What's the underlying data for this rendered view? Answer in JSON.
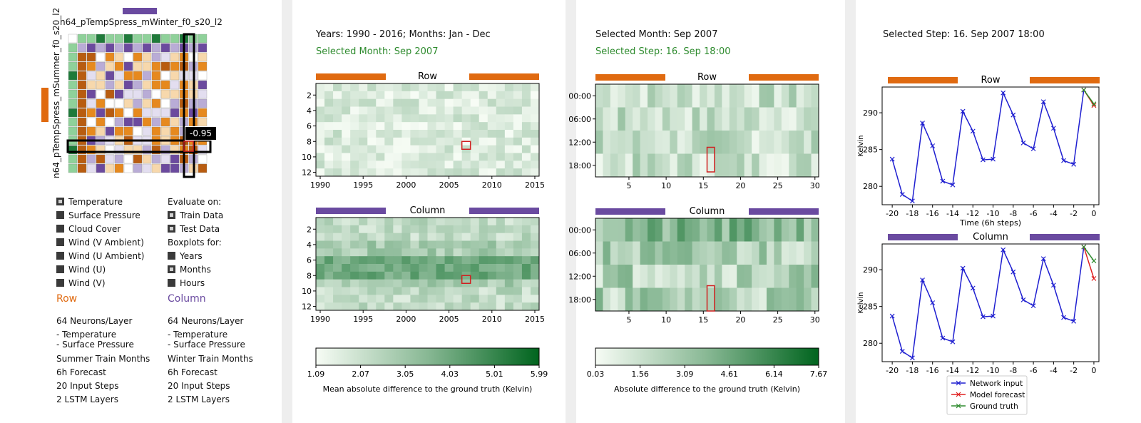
{
  "panel1": {
    "matrix_title": "n64_pTempSpress_mWinter_f0_s20_l2",
    "matrix_ylabel": "n64_pTempSpress_mSummer_f0_s20_l2",
    "tooltip_value": "-0.95",
    "features": [
      {
        "label": "Temperature",
        "checked": true
      },
      {
        "label": "Surface Pressure",
        "checked": false
      },
      {
        "label": "Cloud Cover",
        "checked": false
      },
      {
        "label": "Wind (V Ambient)",
        "checked": false
      },
      {
        "label": "Wind (U Ambient)",
        "checked": false
      },
      {
        "label": "Wind (U)",
        "checked": false
      },
      {
        "label": "Wind (V)",
        "checked": false
      }
    ],
    "evaluate_label": "Evaluate on:",
    "evaluate_options": [
      {
        "label": "Train Data",
        "checked": true
      },
      {
        "label": "Test Data",
        "checked": true
      }
    ],
    "boxplots_label": "Boxplots for:",
    "boxplot_options": [
      {
        "label": "Years",
        "checked": false
      },
      {
        "label": "Months",
        "checked": true
      },
      {
        "label": "Hours",
        "checked": false
      }
    ],
    "row_heading": "Row",
    "column_heading": "Column",
    "row_info": [
      "64 Neurons/Layer",
      "- Temperature",
      "- Surface Pressure",
      "Summer Train Months",
      "6h Forecast",
      "20 Input Steps",
      "2 LSTM Layers"
    ],
    "column_info": [
      "64 Neurons/Layer",
      "- Temperature",
      "- Surface Pressure",
      "Winter Train Months",
      "6h Forecast",
      "20 Input Steps",
      "2 LSTM Layers"
    ],
    "colors": {
      "row": "#e06a10",
      "column": "#6a4aa0"
    }
  },
  "panel2": {
    "heading": "Years: 1990 - 2016; Months: Jan - Dec",
    "subheading": "Selected Month: Sep 2007",
    "row_title": "Row",
    "column_title": "Column",
    "y_ticks": [
      "2",
      "4",
      "6",
      "8",
      "10",
      "12"
    ],
    "x_ticks": [
      "1990",
      "1995",
      "2000",
      "2005",
      "2010",
      "2015"
    ],
    "colorbar_ticks": [
      "1.09",
      "2.07",
      "3.05",
      "4.03",
      "5.01",
      "5.99"
    ],
    "colorbar_label": "Mean absolute difference to the ground truth (Kelvin)"
  },
  "panel3": {
    "heading": "Selected Month: Sep 2007",
    "subheading": "Selected Step: 16. Sep 18:00",
    "row_title": "Row",
    "column_title": "Column",
    "y_ticks": [
      "00:00",
      "06:00",
      "12:00",
      "18:00"
    ],
    "x_ticks": [
      "5",
      "10",
      "15",
      "20",
      "25",
      "30"
    ],
    "colorbar_ticks": [
      "0.03",
      "1.56",
      "3.09",
      "4.61",
      "6.14",
      "7.67"
    ],
    "colorbar_label": "Absolute difference to the ground truth (Kelvin)"
  },
  "panel4": {
    "heading": "Selected Step: 16. Sep 2007 18:00",
    "row_title": "Row",
    "column_title": "Column",
    "ylabel": "Kelvin",
    "xlabel": "Time (6h steps)",
    "legend": [
      "Network input",
      "Model forecast",
      "Ground truth"
    ]
  },
  "chart_data": [
    {
      "type": "line",
      "title": "Row",
      "xlabel": "Time (6h steps)",
      "ylabel": "Kelvin",
      "x_ticks": [
        "-20",
        "-18",
        "-16",
        "-14",
        "-12",
        "-10",
        "-8",
        "-6",
        "-4",
        "-2",
        "0"
      ],
      "y_ticks": [
        "280",
        "285",
        "290"
      ],
      "xlim": [
        -21,
        0.5
      ],
      "ylim": [
        277.5,
        293.5
      ],
      "series": [
        {
          "name": "Network input",
          "color": "#1f1fd0",
          "x": [
            -20,
            -19,
            -18,
            -17,
            -16,
            -15,
            -14,
            -13,
            -12,
            -11,
            -10,
            -9,
            -8,
            -7,
            -6,
            -5,
            -4,
            -3,
            -2,
            -1
          ],
          "y": [
            283.7,
            278.9,
            278.0,
            288.6,
            285.5,
            280.7,
            280.2,
            290.2,
            287.5,
            283.6,
            283.7,
            292.7,
            289.7,
            285.9,
            285.1,
            291.5,
            287.9,
            283.5,
            283.0,
            293.1
          ]
        },
        {
          "name": "Model forecast",
          "color": "#e02020",
          "x": [
            -1,
            0
          ],
          "y": [
            293.1,
            291.0
          ]
        },
        {
          "name": "Ground truth",
          "color": "#2e8b2e",
          "x": [
            -1,
            0
          ],
          "y": [
            293.1,
            291.2
          ]
        }
      ]
    },
    {
      "type": "line",
      "title": "Column",
      "xlabel": "Time (6h steps)",
      "ylabel": "Kelvin",
      "x_ticks": [
        "-20",
        "-18",
        "-16",
        "-14",
        "-12",
        "-10",
        "-8",
        "-6",
        "-4",
        "-2",
        "0"
      ],
      "y_ticks": [
        "280",
        "285",
        "290"
      ],
      "xlim": [
        -21,
        0.5
      ],
      "ylim": [
        277.5,
        293.5
      ],
      "series": [
        {
          "name": "Network input",
          "color": "#1f1fd0",
          "x": [
            -20,
            -19,
            -18,
            -17,
            -16,
            -15,
            -14,
            -13,
            -12,
            -11,
            -10,
            -9,
            -8,
            -7,
            -6,
            -5,
            -4,
            -3,
            -2,
            -1
          ],
          "y": [
            283.7,
            278.9,
            278.0,
            288.6,
            285.5,
            280.7,
            280.2,
            290.2,
            287.5,
            283.6,
            283.7,
            292.7,
            289.7,
            285.9,
            285.1,
            291.5,
            287.9,
            283.5,
            283.0,
            293.1
          ]
        },
        {
          "name": "Model forecast",
          "color": "#e02020",
          "x": [
            -1,
            0
          ],
          "y": [
            293.1,
            288.8
          ]
        },
        {
          "name": "Ground truth",
          "color": "#2e8b2e",
          "x": [
            -1,
            0
          ],
          "y": [
            293.1,
            291.2
          ]
        }
      ]
    }
  ]
}
